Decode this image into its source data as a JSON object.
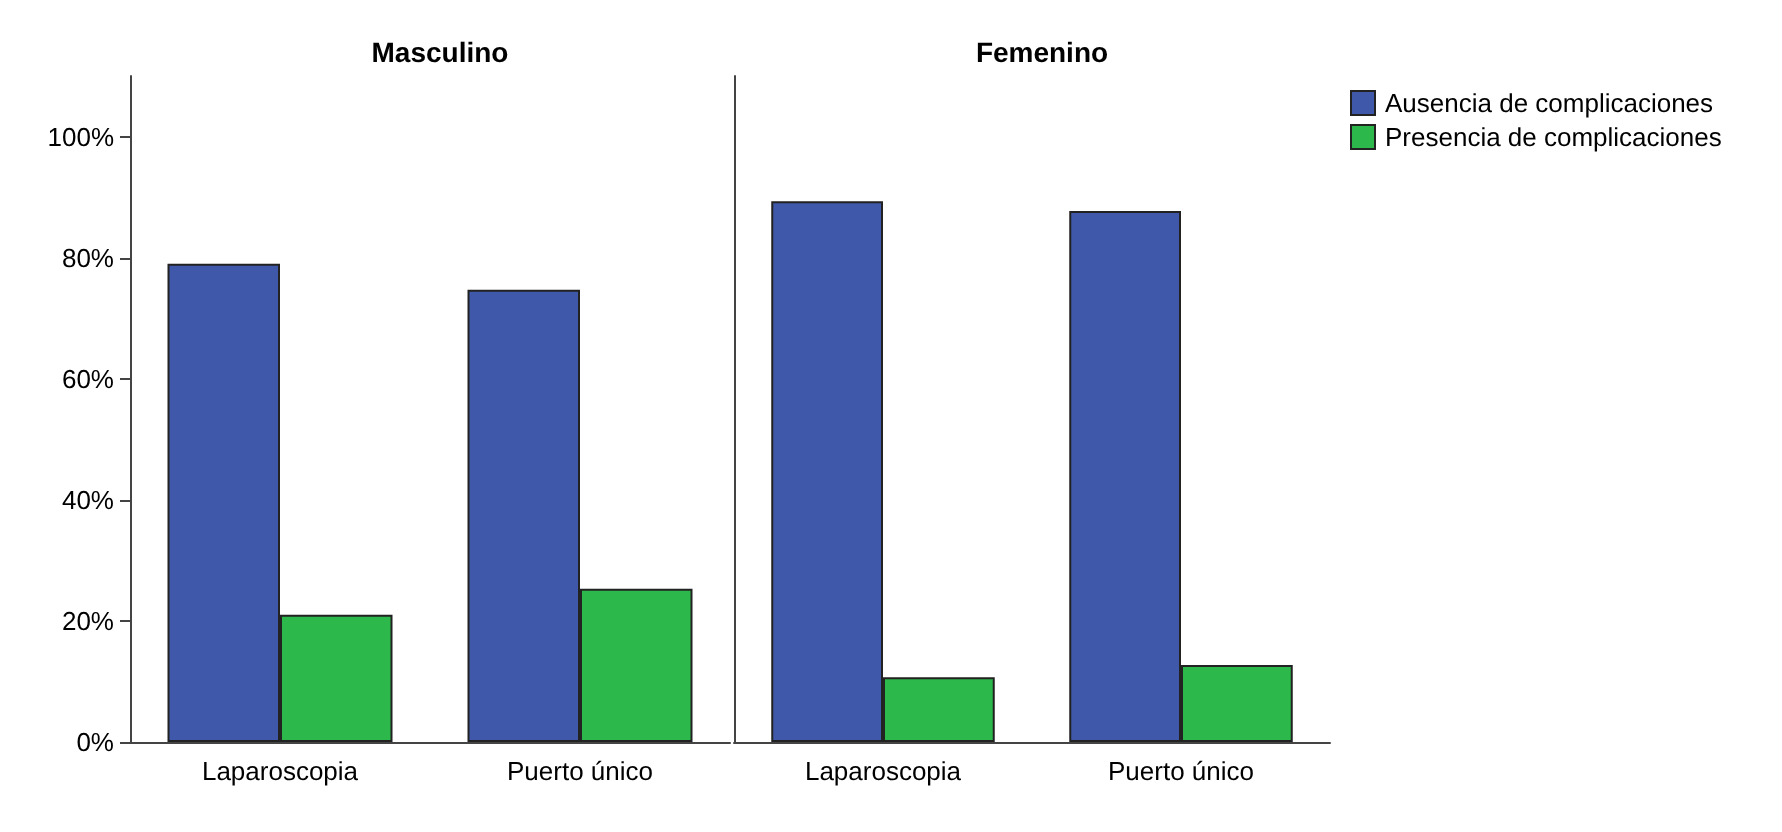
{
  "chart_data": [
    {
      "type": "bar",
      "title": "Masculino",
      "categories": [
        "Laparoscopia",
        "Puerto único"
      ],
      "series": [
        {
          "color": "#3f58a9",
          "values": [
            79,
            74.7
          ]
        },
        {
          "color": "#2db84b",
          "values": [
            21,
            25.3
          ]
        }
      ],
      "ylim": [
        0,
        110
      ],
      "yticks": [
        {
          "value": 0,
          "label": "0%"
        },
        {
          "value": 20,
          "label": "20%"
        },
        {
          "value": 40,
          "label": "40%"
        },
        {
          "value": 60,
          "label": "60%"
        },
        {
          "value": 80,
          "label": "80%"
        },
        {
          "value": 100,
          "label": "100%"
        }
      ],
      "grid": false,
      "legend": false
    },
    {
      "type": "bar",
      "title": "Femenino",
      "categories": [
        "Laparoscopia",
        "Puerto único"
      ],
      "series": [
        {
          "name": "Ausencia de complicaciones",
          "color": "#3f58a9",
          "values": [
            89.3,
            87.7
          ]
        },
        {
          "name": "Presencia de complicaciones",
          "color": "#2db84b",
          "values": [
            10.7,
            12.7
          ]
        }
      ],
      "ylim": [
        0,
        110
      ],
      "tick_labels": "x",
      "grid": false,
      "legend": "top right"
    }
  ]
}
